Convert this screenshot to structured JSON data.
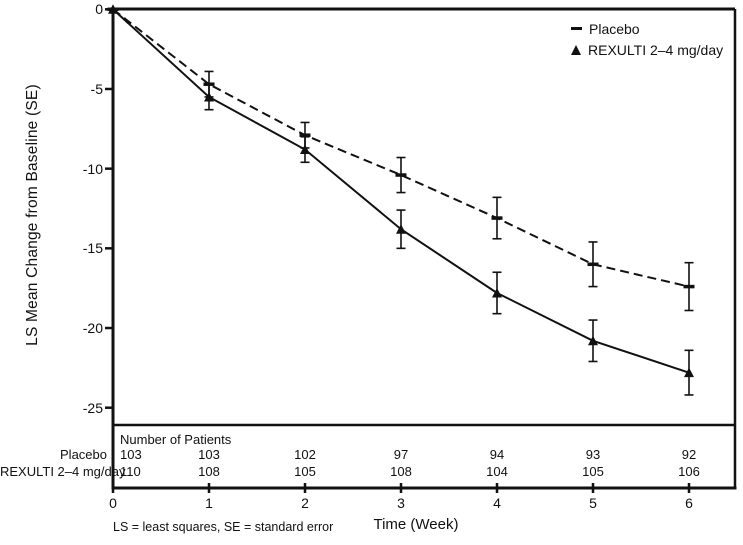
{
  "figure": {
    "y_axis_label": "LS Mean Change from Baseline (SE)",
    "x_axis_label": "Time (Week)",
    "footnote": "LS = least squares, SE = standard error",
    "ink_color": "#111111",
    "background_color": "#ffffff"
  },
  "legend": {
    "position": "top-right",
    "items": [
      {
        "label": "Placebo",
        "marker": "dash-icon"
      },
      {
        "label": "REXULTI 2–4 mg/day",
        "marker": "triangle-icon"
      }
    ]
  },
  "chart_data": {
    "type": "line",
    "x": [
      0,
      1,
      2,
      3,
      4,
      5,
      6
    ],
    "xlabel": "Time (Week)",
    "ylabel": "LS Mean Change from Baseline (SE)",
    "ylim": [
      -25,
      0
    ],
    "yticks": [
      0,
      -5,
      -10,
      -15,
      -20,
      -25
    ],
    "grid": false,
    "legend_position": "top-right",
    "color": "#111111",
    "series": [
      {
        "name": "Placebo",
        "line_style": "dashed",
        "marker": "dash",
        "values": [
          0,
          -4.7,
          -7.9,
          -10.4,
          -13.1,
          -16.0,
          -17.4
        ],
        "se": [
          0,
          0.8,
          0.8,
          1.1,
          1.3,
          1.4,
          1.5
        ]
      },
      {
        "name": "REXULTI 2–4 mg/day",
        "line_style": "solid",
        "marker": "triangle",
        "values": [
          0,
          -5.5,
          -8.8,
          -13.8,
          -17.8,
          -20.8,
          -22.8
        ],
        "se": [
          0,
          0.8,
          0.8,
          1.2,
          1.3,
          1.3,
          1.4
        ]
      }
    ]
  },
  "patients_table": {
    "title": "Number of Patients",
    "rows": [
      {
        "label": "Placebo",
        "counts": [
          103,
          103,
          102,
          97,
          94,
          93,
          92
        ]
      },
      {
        "label": "REXULTI 2–4 mg/day",
        "counts": [
          110,
          108,
          105,
          108,
          104,
          105,
          106
        ]
      }
    ]
  }
}
